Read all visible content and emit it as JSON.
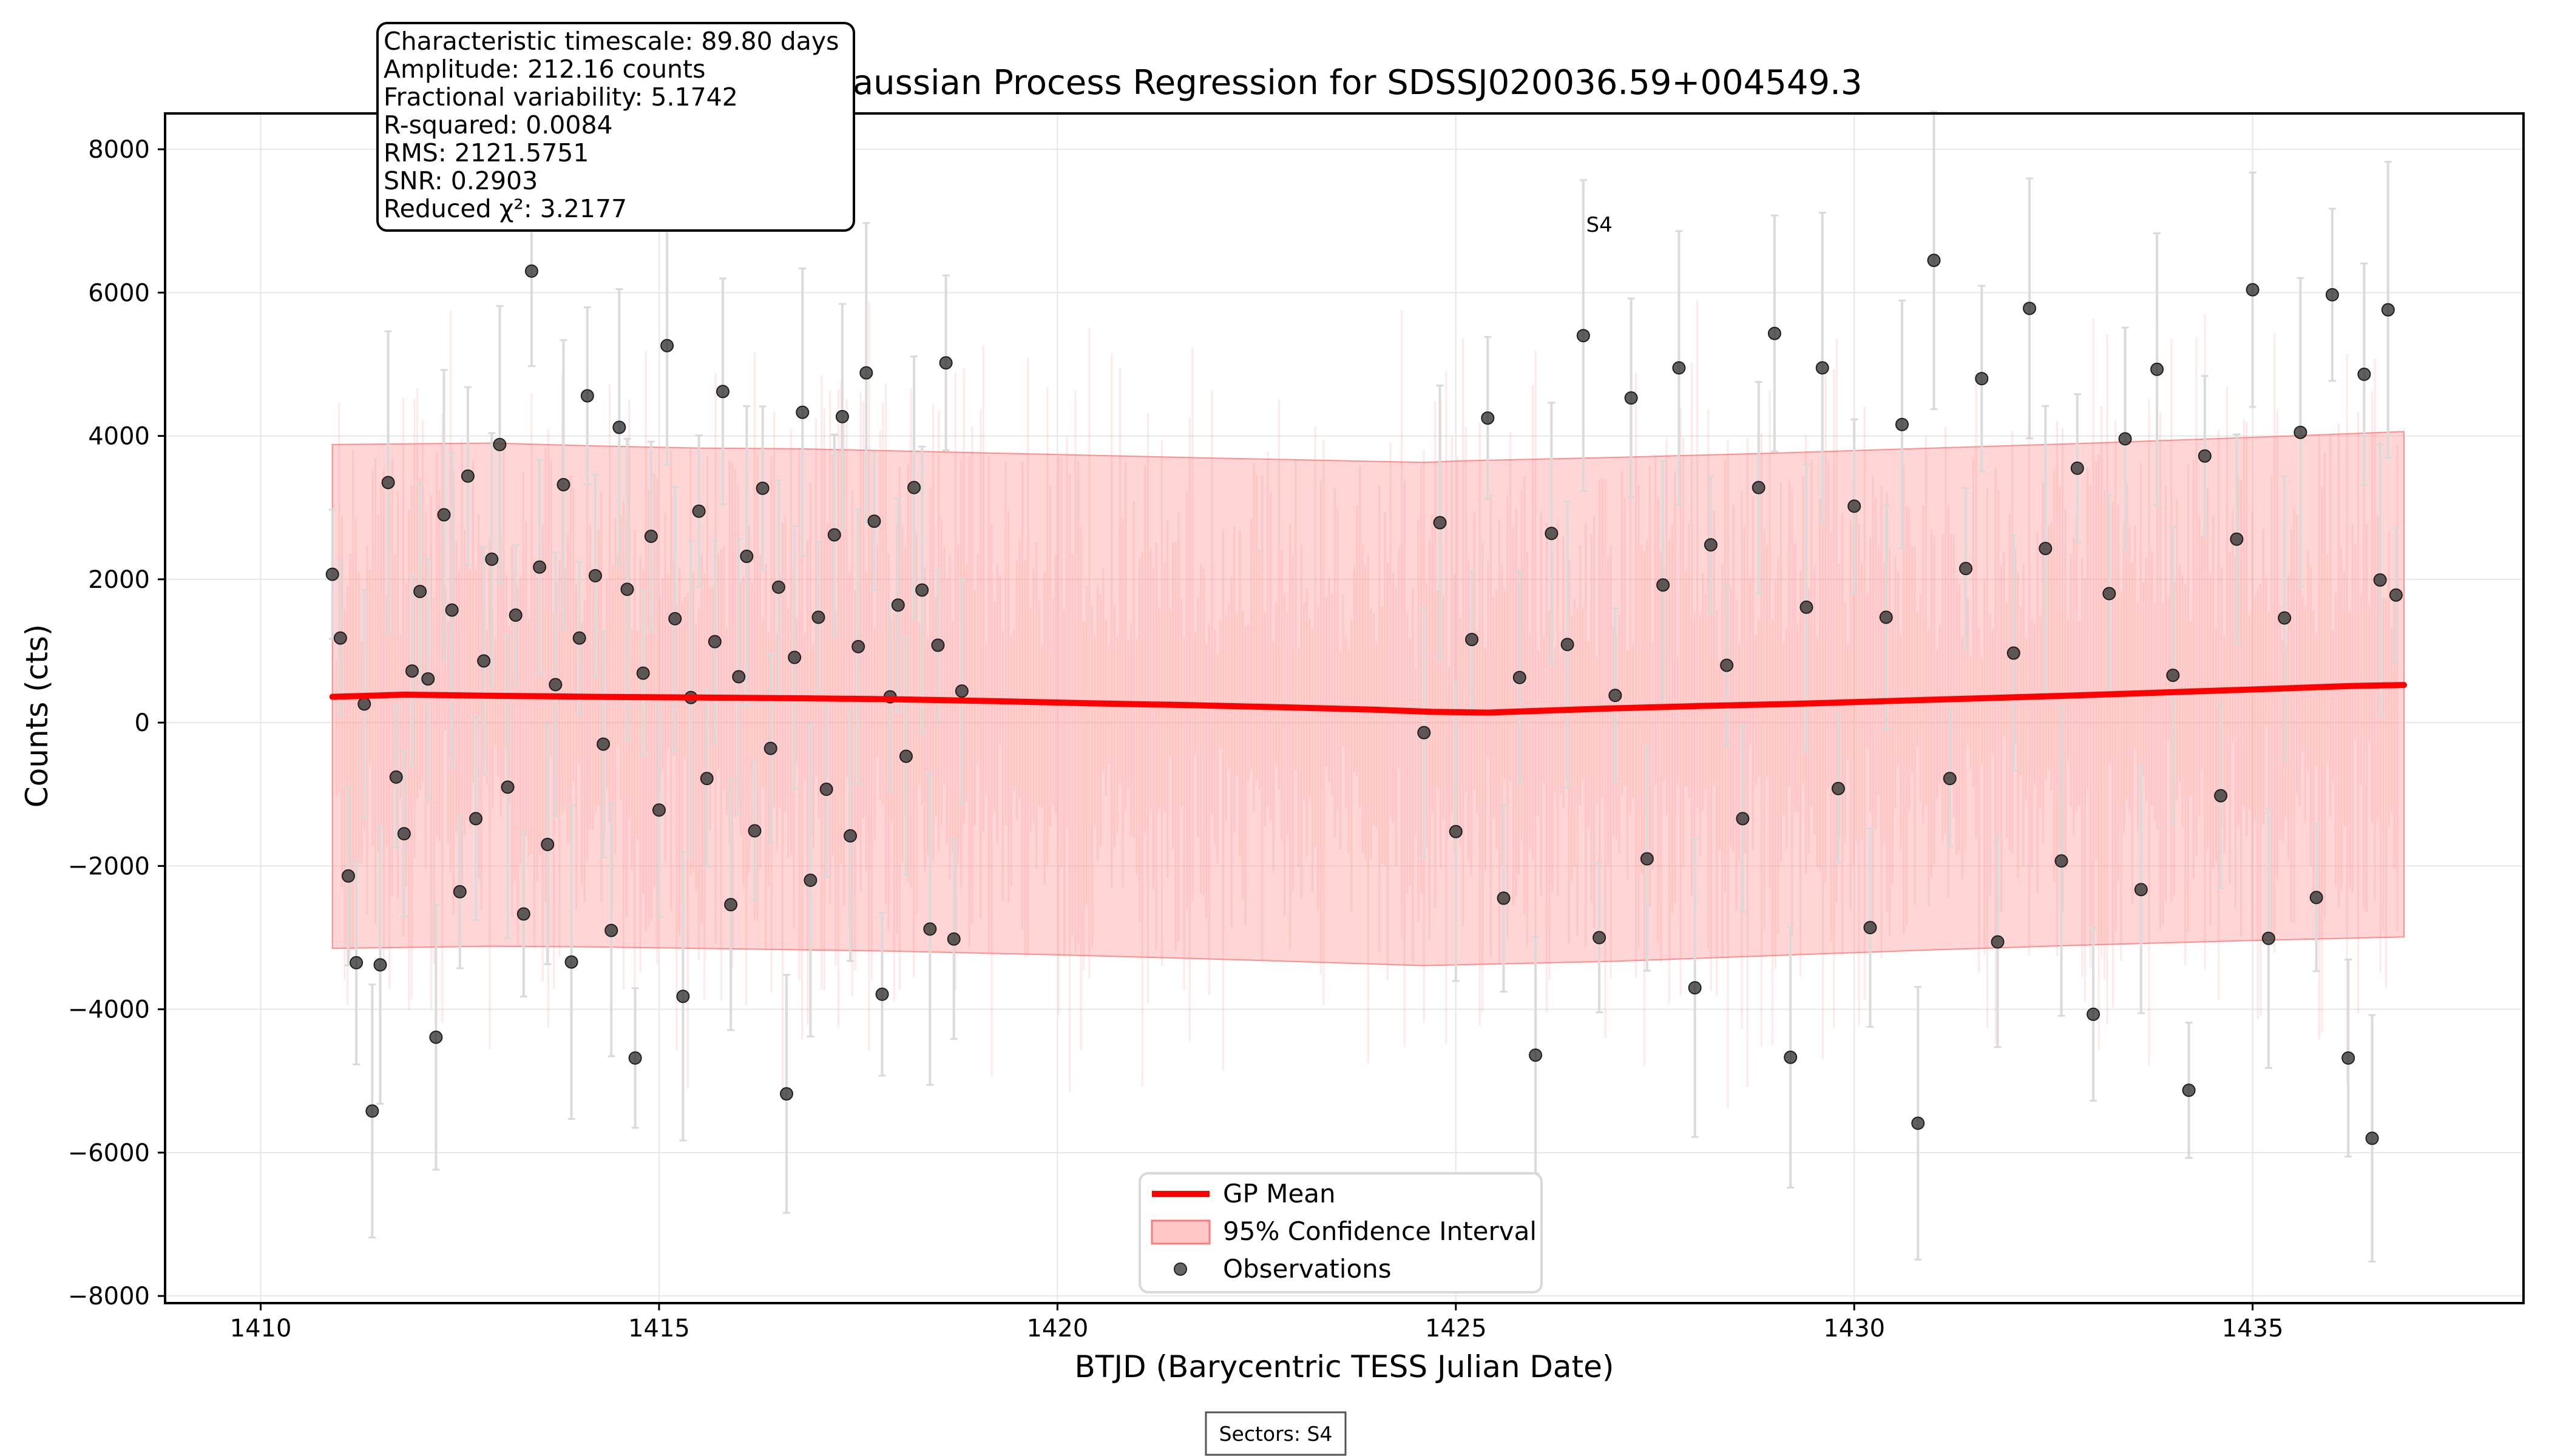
{
  "chart_data": {
    "type": "scatter",
    "title": "Gaussian Process Regression for SDSSJ020036.59+004549.3",
    "xlabel": "BTJD (Barycentric TESS Julian Date)",
    "ylabel": "Counts (cts)",
    "xlim": [
      1408.8,
      1438.4
    ],
    "ylim": [
      -8100,
      8500
    ],
    "grid": true,
    "legend_placement": "bottom-center",
    "x_ticks": [
      1410,
      1415,
      1420,
      1425,
      1430,
      1435
    ],
    "y_ticks": [
      -8000,
      -6000,
      -4000,
      -2000,
      0,
      2000,
      4000,
      6000,
      8000
    ],
    "y_tick_labels": [
      "−8000",
      "−6000",
      "−4000",
      "−2000",
      "0",
      "2000",
      "4000",
      "6000",
      "8000"
    ],
    "colors": {
      "gp_mean": "#ff0000",
      "confidence_fill": "#ff9a9a",
      "observations": "#333333",
      "errorbars": "#d9d9d9",
      "grid": "#e6e6e6"
    },
    "stats": [
      "Characteristic timescale: 89.80 days",
      "Amplitude: 212.16 counts",
      "Fractional variability: 5.1742",
      "R-squared: 0.0084",
      "RMS: 2121.5751",
      "SNR: 0.2903",
      "Reduced χ²: 3.2177"
    ],
    "annotation": {
      "label": "S4",
      "x": 1426.8,
      "y": 6850
    },
    "footer": "Sectors: S4",
    "legend": [
      {
        "label": "GP Mean",
        "kind": "line"
      },
      {
        "label": "95% Confidence Interval",
        "kind": "fill"
      },
      {
        "label": "Observations",
        "kind": "marker"
      }
    ],
    "gp_mean": {
      "name": "GP Mean",
      "x": [
        1410.9,
        1411.8,
        1412.9,
        1414.2,
        1415.5,
        1416.8,
        1418.0,
        1419.2,
        1420.4,
        1421.6,
        1422.8,
        1424.0,
        1424.7,
        1425.4,
        1426.2,
        1427.0,
        1428.0,
        1429.2,
        1430.4,
        1431.6,
        1432.8,
        1434.0,
        1435.2,
        1436.2,
        1436.9
      ],
      "y": [
        360,
        390,
        375,
        360,
        350,
        340,
        325,
        300,
        270,
        245,
        215,
        180,
        150,
        140,
        170,
        200,
        230,
        260,
        300,
        340,
        380,
        425,
        470,
        510,
        525
      ]
    },
    "confidence_interval": {
      "name": "95% Confidence Interval",
      "x": [
        1410.9,
        1412.9,
        1414.2,
        1415.5,
        1416.8,
        1418.0,
        1420.0,
        1422.0,
        1424.6,
        1425.0,
        1427.0,
        1429.0,
        1431.0,
        1433.0,
        1435.0,
        1436.9
      ],
      "upper": [
        3880,
        3900,
        3860,
        3830,
        3820,
        3790,
        3740,
        3690,
        3630,
        3650,
        3700,
        3760,
        3830,
        3900,
        3980,
        4060
      ],
      "lower": [
        -3150,
        -3120,
        -3130,
        -3150,
        -3170,
        -3190,
        -3240,
        -3300,
        -3390,
        -3380,
        -3330,
        -3250,
        -3170,
        -3100,
        -3040,
        -2990
      ]
    },
    "observations": {
      "name": "Observations",
      "points": [
        [
          1410.9,
          2070
        ],
        [
          1411.0,
          1180
        ],
        [
          1411.1,
          -2140
        ],
        [
          1411.2,
          -3350
        ],
        [
          1411.3,
          260
        ],
        [
          1411.4,
          -5420
        ],
        [
          1411.5,
          -3380
        ],
        [
          1411.6,
          3350
        ],
        [
          1411.7,
          -760
        ],
        [
          1411.8,
          -1550
        ],
        [
          1411.9,
          720
        ],
        [
          1412.0,
          1830
        ],
        [
          1412.1,
          610
        ],
        [
          1412.2,
          -4390
        ],
        [
          1412.3,
          2900
        ],
        [
          1412.4,
          1570
        ],
        [
          1412.5,
          -2360
        ],
        [
          1412.6,
          3440
        ],
        [
          1412.7,
          -1340
        ],
        [
          1412.8,
          860
        ],
        [
          1412.9,
          2280
        ],
        [
          1413.0,
          3880
        ],
        [
          1413.1,
          -900
        ],
        [
          1413.2,
          1500
        ],
        [
          1413.3,
          -2670
        ],
        [
          1413.4,
          6300
        ],
        [
          1413.5,
          2170
        ],
        [
          1413.6,
          -1700
        ],
        [
          1413.7,
          530
        ],
        [
          1413.8,
          3320
        ],
        [
          1413.9,
          -3340
        ],
        [
          1414.0,
          1180
        ],
        [
          1414.1,
          4560
        ],
        [
          1414.2,
          2050
        ],
        [
          1414.3,
          -300
        ],
        [
          1414.4,
          -2900
        ],
        [
          1414.5,
          4120
        ],
        [
          1414.6,
          1860
        ],
        [
          1414.7,
          -4680
        ],
        [
          1414.8,
          690
        ],
        [
          1414.9,
          2600
        ],
        [
          1415.0,
          -1220
        ],
        [
          1415.1,
          5260
        ],
        [
          1415.2,
          1450
        ],
        [
          1415.3,
          -3820
        ],
        [
          1415.4,
          350
        ],
        [
          1415.5,
          2950
        ],
        [
          1415.6,
          -780
        ],
        [
          1415.7,
          1130
        ],
        [
          1415.8,
          4620
        ],
        [
          1415.9,
          -2540
        ],
        [
          1416.0,
          640
        ],
        [
          1416.1,
          2320
        ],
        [
          1416.2,
          -1510
        ],
        [
          1416.3,
          3270
        ],
        [
          1416.4,
          -360
        ],
        [
          1416.5,
          1890
        ],
        [
          1416.6,
          -5180
        ],
        [
          1416.7,
          910
        ],
        [
          1416.8,
          4330
        ],
        [
          1416.9,
          -2200
        ],
        [
          1417.0,
          1470
        ],
        [
          1417.1,
          -930
        ],
        [
          1417.2,
          2620
        ],
        [
          1417.3,
          4270
        ],
        [
          1417.4,
          -1580
        ],
        [
          1417.5,
          1060
        ],
        [
          1417.6,
          4880
        ],
        [
          1417.7,
          2810
        ],
        [
          1417.8,
          -3790
        ],
        [
          1417.9,
          360
        ],
        [
          1418.0,
          1640
        ],
        [
          1418.1,
          -470
        ],
        [
          1418.2,
          3280
        ],
        [
          1418.3,
          1850
        ],
        [
          1418.4,
          -2880
        ],
        [
          1418.5,
          1080
        ],
        [
          1418.6,
          5020
        ],
        [
          1418.7,
          -3020
        ],
        [
          1418.8,
          440
        ],
        [
          1424.6,
          -140
        ],
        [
          1424.8,
          2790
        ],
        [
          1425.0,
          -1520
        ],
        [
          1425.2,
          1160
        ],
        [
          1425.4,
          4250
        ],
        [
          1425.6,
          -2450
        ],
        [
          1425.8,
          630
        ],
        [
          1426.0,
          -4640
        ],
        [
          1426.2,
          2640
        ],
        [
          1426.4,
          1090
        ],
        [
          1426.6,
          5400
        ],
        [
          1426.8,
          -3000
        ],
        [
          1427.0,
          380
        ],
        [
          1427.2,
          4530
        ],
        [
          1427.4,
          -1900
        ],
        [
          1427.6,
          1920
        ],
        [
          1427.8,
          4950
        ],
        [
          1428.0,
          -3700
        ],
        [
          1428.2,
          2480
        ],
        [
          1428.4,
          800
        ],
        [
          1428.6,
          -1340
        ],
        [
          1428.8,
          3280
        ],
        [
          1429.0,
          5430
        ],
        [
          1429.2,
          -4670
        ],
        [
          1429.4,
          1610
        ],
        [
          1429.6,
          4950
        ],
        [
          1429.8,
          -920
        ],
        [
          1430.0,
          3020
        ],
        [
          1430.2,
          -2860
        ],
        [
          1430.4,
          1470
        ],
        [
          1430.6,
          4160
        ],
        [
          1430.8,
          -5590
        ],
        [
          1431.0,
          6450
        ],
        [
          1431.2,
          -780
        ],
        [
          1431.4,
          2150
        ],
        [
          1431.6,
          4800
        ],
        [
          1431.8,
          -3060
        ],
        [
          1432.0,
          970
        ],
        [
          1432.2,
          5780
        ],
        [
          1432.4,
          2430
        ],
        [
          1432.6,
          -1930
        ],
        [
          1432.8,
          3550
        ],
        [
          1433.0,
          -4070
        ],
        [
          1433.2,
          1800
        ],
        [
          1433.4,
          3960
        ],
        [
          1433.6,
          -2330
        ],
        [
          1433.8,
          4930
        ],
        [
          1434.0,
          660
        ],
        [
          1434.2,
          -5130
        ],
        [
          1434.4,
          3720
        ],
        [
          1434.6,
          -1020
        ],
        [
          1434.8,
          2560
        ],
        [
          1435.0,
          6040
        ],
        [
          1435.2,
          -3010
        ],
        [
          1435.4,
          1460
        ],
        [
          1435.6,
          4050
        ],
        [
          1435.8,
          -2440
        ],
        [
          1436.0,
          5970
        ],
        [
          1436.2,
          -4680
        ],
        [
          1436.4,
          4860
        ],
        [
          1436.5,
          -5800
        ],
        [
          1436.6,
          1990
        ],
        [
          1436.7,
          5760
        ],
        [
          1436.8,
          1780
        ]
      ]
    }
  }
}
